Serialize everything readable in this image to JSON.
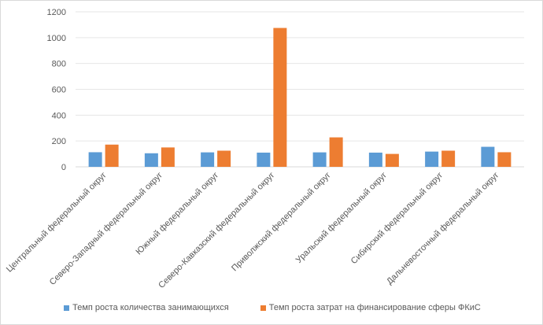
{
  "chart_data": {
    "type": "bar",
    "title": "",
    "xlabel": "",
    "ylabel": "",
    "ylim": [
      0,
      1200
    ],
    "yticks": [
      0,
      200,
      400,
      600,
      800,
      1000,
      1200
    ],
    "grid": true,
    "legend_position": "bottom",
    "categories": [
      "Центральный федеральный округ",
      "Северо-Западный федеральный округ",
      "Южный федеральный округ",
      "Северо-Кавказский федеральный округ",
      "Приволжский федеральный округ",
      "Уральский федеральный округ",
      "Сибирский федеральный округ",
      "Дальневосточный федеральный округ"
    ],
    "series": [
      {
        "name": "Темп роста количества занимающихся",
        "color": "#5b9bd5",
        "values": [
          113,
          105,
          112,
          110,
          112,
          110,
          118,
          155
        ]
      },
      {
        "name": "Темп роста затрат на финансирование сферы ФКиС",
        "color": "#ed7d31",
        "values": [
          172,
          150,
          125,
          1075,
          228,
          100,
          125,
          113
        ]
      }
    ]
  }
}
